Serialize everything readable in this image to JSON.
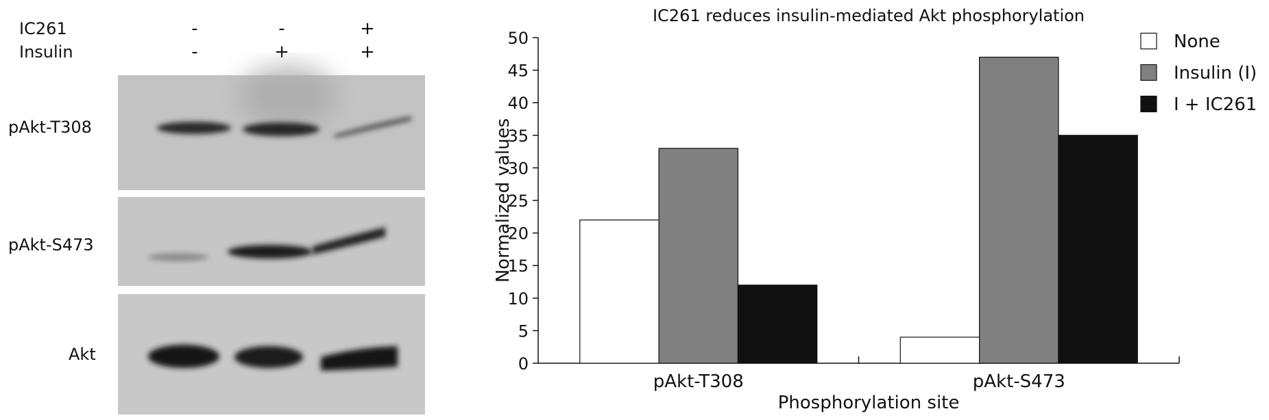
{
  "blot": {
    "treatments": [
      {
        "label": "IC261",
        "values": [
          "-",
          "-",
          "+"
        ]
      },
      {
        "label": "Insulin",
        "values": [
          "-",
          "+",
          "+"
        ]
      }
    ],
    "panels": [
      "pAkt-T308",
      "pAkt-S473",
      "Akt"
    ]
  },
  "chart_data": {
    "type": "bar",
    "title": "IC261 reduces insulin-mediated Akt phosphorylation",
    "xlabel": "Phosphorylation site",
    "ylabel": "Normalized values",
    "categories": [
      "pAkt-T308",
      "pAkt-S473"
    ],
    "series": [
      {
        "name": "None",
        "values": [
          22,
          4
        ],
        "color": "#ffffff"
      },
      {
        "name": "Insulin (I)",
        "values": [
          33,
          47
        ],
        "color": "#808080"
      },
      {
        "name": "I + IC261",
        "values": [
          12,
          35
        ],
        "color": "#111111"
      }
    ],
    "ylim": [
      0,
      50
    ],
    "yticks": [
      0,
      5,
      10,
      15,
      20,
      25,
      30,
      35,
      40,
      45,
      50
    ],
    "grid": false,
    "legend": "top-right"
  }
}
